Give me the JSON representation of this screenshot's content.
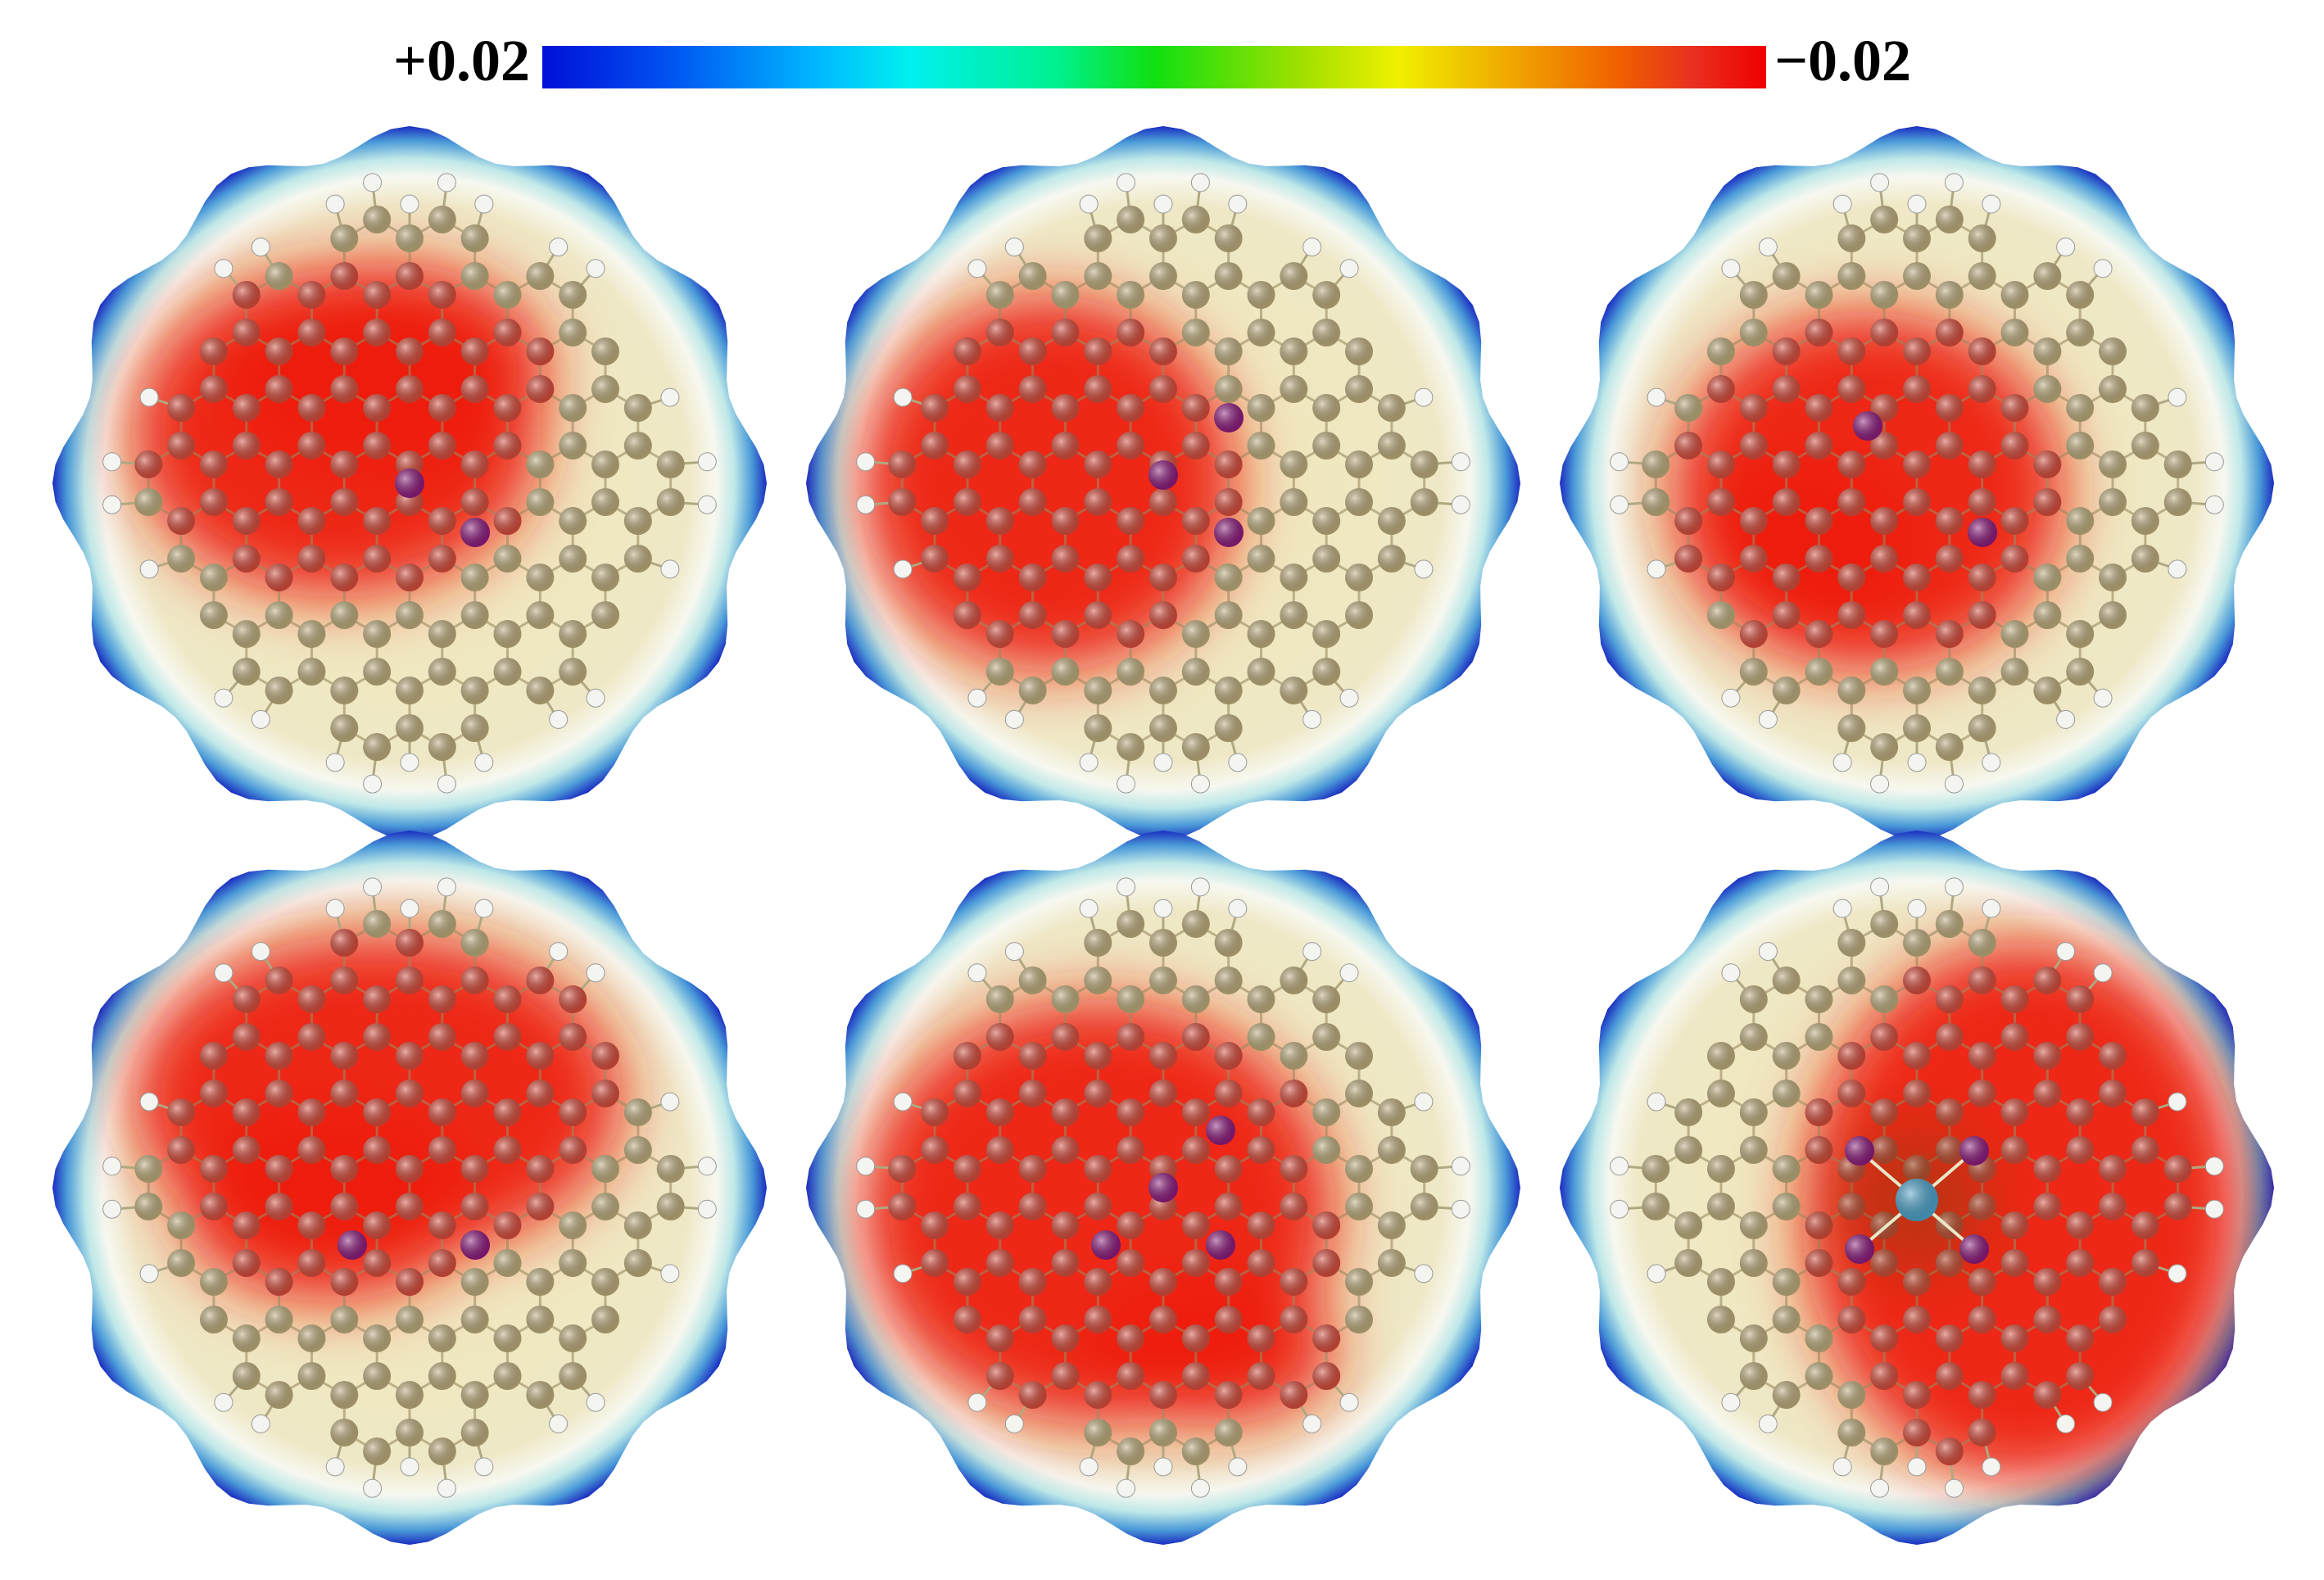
{
  "color_scale": {
    "min_label": "+0.02",
    "max_label": "−0.02",
    "colors": [
      "#0010d8",
      "#00b4ff",
      "#00f0f0",
      "#10e010",
      "#f0f000",
      "#f06000",
      "#f00000"
    ]
  },
  "panels": [
    {
      "id": "1",
      "red_region": "upper-left",
      "dopant_atoms": 2,
      "metal_center": false
    },
    {
      "id": "2",
      "red_region": "left",
      "dopant_atoms": 3,
      "metal_center": false
    },
    {
      "id": "3",
      "red_region": "center-left",
      "dopant_atoms": 2,
      "metal_center": false
    },
    {
      "id": "4",
      "red_region": "upper",
      "dopant_atoms": 2,
      "metal_center": false
    },
    {
      "id": "5",
      "red_region": "left-center-lower",
      "dopant_atoms": 4,
      "metal_center": false
    },
    {
      "id": "6",
      "red_region": "right",
      "dopant_atoms": 4,
      "metal_center": true
    }
  ],
  "atom_colors": {
    "carbon": "#b9a878",
    "carbon_in_red": "#d24a3a",
    "hydrogen": "#f4f4f0",
    "dopant": "#8a1a7a",
    "metal": "#4aa0c8"
  }
}
